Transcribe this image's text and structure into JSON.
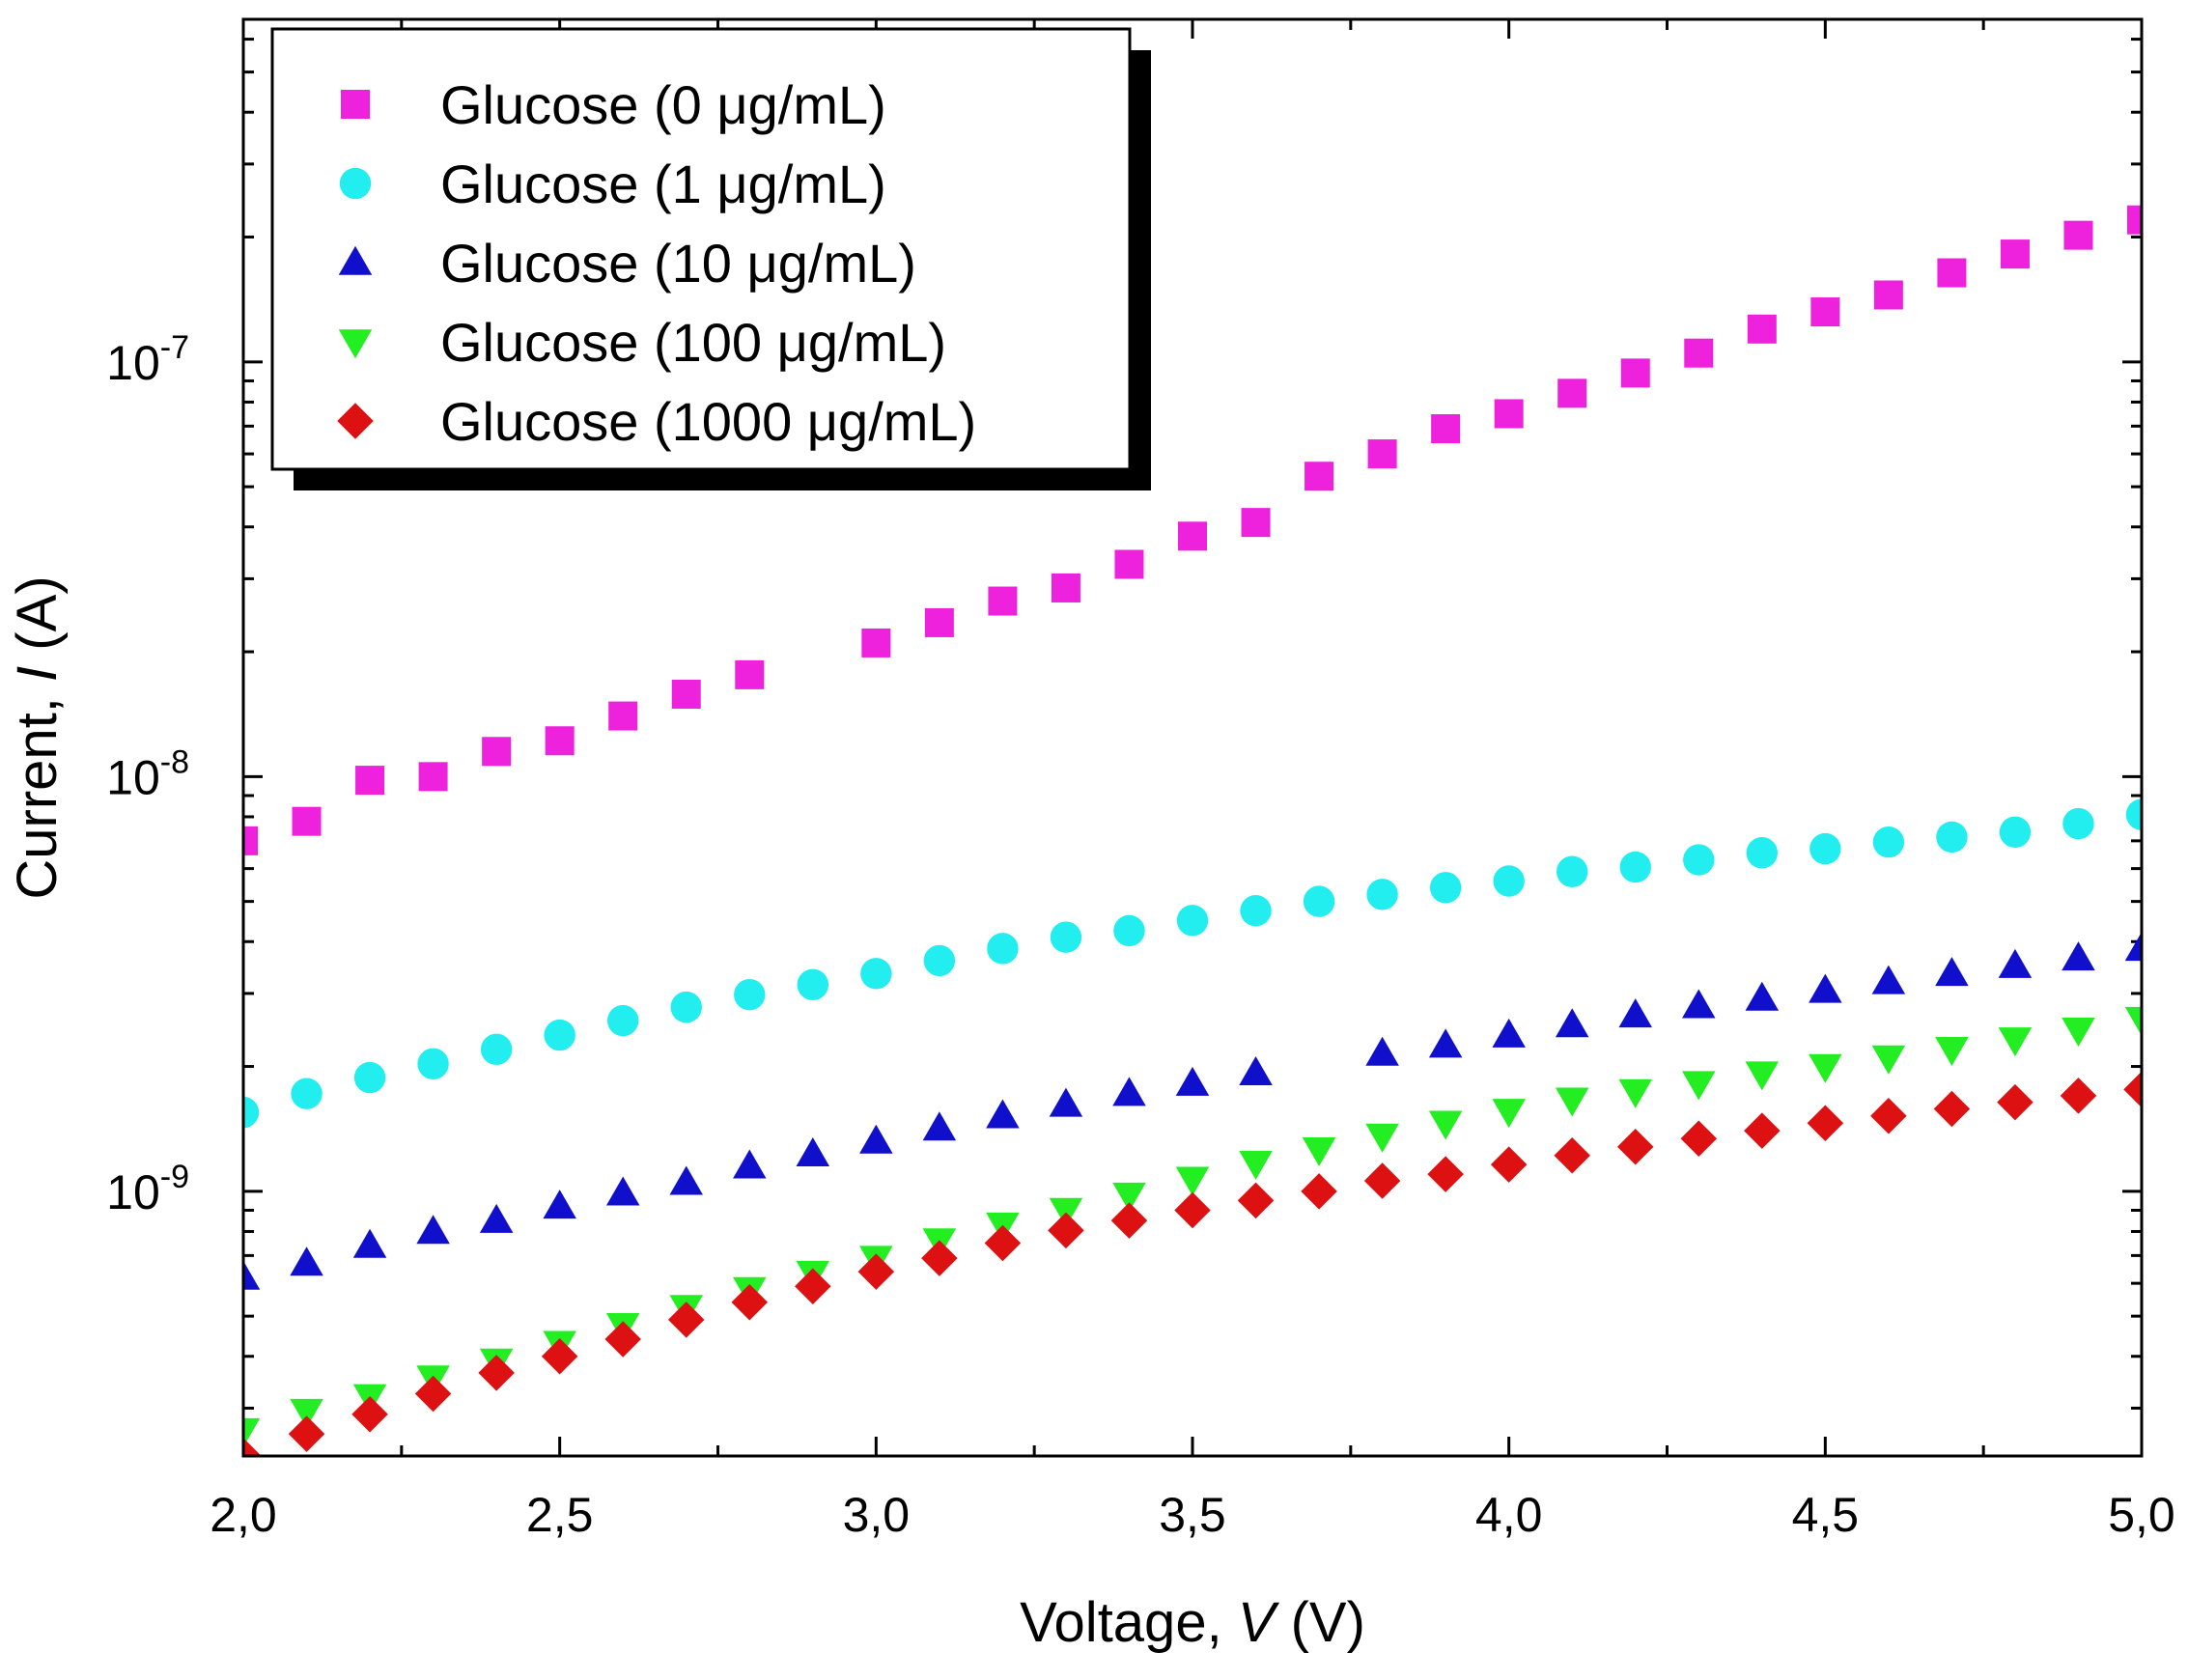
{
  "chart_data": {
    "type": "scatter",
    "title": "",
    "xlabel": {
      "pre": "Voltage, ",
      "var": "V",
      "post": " (V)"
    },
    "ylabel": {
      "pre": "Current, ",
      "var": "I",
      "post": " (A)"
    },
    "xlim": [
      2.0,
      5.0
    ],
    "ylim": [
      2.3e-10,
      6.7e-07
    ],
    "yscale": "log",
    "x_ticks": [
      {
        "value": 2.0,
        "label": "2,0"
      },
      {
        "value": 2.5,
        "label": "2,5"
      },
      {
        "value": 3.0,
        "label": "3,0"
      },
      {
        "value": 3.5,
        "label": "3,5"
      },
      {
        "value": 4.0,
        "label": "4,0"
      },
      {
        "value": 4.5,
        "label": "4,5"
      },
      {
        "value": 5.0,
        "label": "5,0"
      }
    ],
    "y_ticks": [
      {
        "value": 1e-09,
        "base": "10",
        "exp": "-9"
      },
      {
        "value": 1e-08,
        "base": "10",
        "exp": "-8"
      },
      {
        "value": 1e-07,
        "base": "10",
        "exp": "-7"
      }
    ],
    "legend_position": "top-left",
    "x": [
      2.0,
      2.1,
      2.2,
      2.3,
      2.4,
      2.5,
      2.6,
      2.7,
      2.8,
      2.9,
      3.0,
      3.1,
      3.2,
      3.3,
      3.4,
      3.5,
      3.6,
      3.7,
      3.8,
      3.9,
      4.0,
      4.1,
      4.2,
      4.3,
      4.4,
      4.5,
      4.6,
      4.7,
      4.8,
      4.9,
      5.0
    ],
    "series": [
      {
        "name": "Glucose (0 μg/mL)",
        "marker": "square",
        "color": "#ee22dd",
        "values": [
          7e-09,
          7.8e-09,
          9.8e-09,
          1e-08,
          1.15e-08,
          1.22e-08,
          1.4e-08,
          1.58e-08,
          1.76e-08,
          null,
          2.1e-08,
          2.35e-08,
          2.65e-08,
          2.85e-08,
          3.25e-08,
          3.8e-08,
          4.1e-08,
          5.3e-08,
          6e-08,
          6.9e-08,
          7.5e-08,
          8.4e-08,
          9.4e-08,
          1.05e-07,
          1.2e-07,
          1.32e-07,
          1.45e-07,
          1.64e-07,
          1.82e-07,
          2.02e-07,
          2.2e-07
        ]
      },
      {
        "name": "Glucose (1 μg/mL)",
        "marker": "circle",
        "color": "#22eef0",
        "values": [
          1.55e-09,
          1.72e-09,
          1.88e-09,
          2.03e-09,
          2.2e-09,
          2.38e-09,
          2.58e-09,
          2.78e-09,
          2.98e-09,
          3.15e-09,
          3.35e-09,
          3.6e-09,
          3.85e-09,
          4.1e-09,
          4.25e-09,
          4.5e-09,
          4.75e-09,
          5e-09,
          5.2e-09,
          5.4e-09,
          5.6e-09,
          5.9e-09,
          6.05e-09,
          6.3e-09,
          6.55e-09,
          6.7e-09,
          6.95e-09,
          7.15e-09,
          7.35e-09,
          7.7e-09,
          8.1e-09
        ]
      },
      {
        "name": "Glucose (10 μg/mL)",
        "marker": "triangle-up",
        "color": "#1010cc",
        "values": [
          6.2e-10,
          6.7e-10,
          7.4e-10,
          8e-10,
          8.5e-10,
          9.2e-10,
          9.9e-10,
          1.05e-09,
          1.15e-09,
          1.23e-09,
          1.32e-09,
          1.42e-09,
          1.52e-09,
          1.62e-09,
          1.72e-09,
          1.82e-09,
          1.93e-09,
          null,
          2.15e-09,
          2.25e-09,
          2.38e-09,
          2.52e-09,
          2.66e-09,
          2.8e-09,
          2.92e-09,
          3.05e-09,
          3.2e-09,
          3.35e-09,
          3.5e-09,
          3.65e-09,
          3.85e-09
        ]
      },
      {
        "name": "Glucose (100 μg/mL)",
        "marker": "triangle-down",
        "color": "#22ee22",
        "values": [
          2.65e-10,
          2.95e-10,
          3.2e-10,
          3.55e-10,
          3.9e-10,
          4.3e-10,
          4.75e-10,
          5.25e-10,
          5.8e-10,
          6.35e-10,
          6.9e-10,
          7.6e-10,
          8.3e-10,
          9e-10,
          9.8e-10,
          1.07e-09,
          1.17e-09,
          1.26e-09,
          1.36e-09,
          1.46e-09,
          1.56e-09,
          1.66e-09,
          1.74e-09,
          1.82e-09,
          1.92e-09,
          2e-09,
          2.1e-09,
          2.2e-09,
          2.32e-09,
          2.45e-09,
          2.6e-09
        ]
      },
      {
        "name": "Glucose (1000 μg/mL)",
        "marker": "diamond",
        "color": "#dd1111",
        "values": [
          2.3e-10,
          2.6e-10,
          2.9e-10,
          3.25e-10,
          3.65e-10,
          4e-10,
          4.4e-10,
          4.9e-10,
          5.4e-10,
          5.9e-10,
          6.4e-10,
          6.9e-10,
          7.5e-10,
          8.05e-10,
          8.5e-10,
          9e-10,
          9.5e-10,
          1e-09,
          1.06e-09,
          1.1e-09,
          1.16e-09,
          1.22e-09,
          1.28e-09,
          1.34e-09,
          1.4e-09,
          1.46e-09,
          1.52e-09,
          1.58e-09,
          1.64e-09,
          1.7e-09,
          1.76e-09
        ]
      }
    ]
  }
}
